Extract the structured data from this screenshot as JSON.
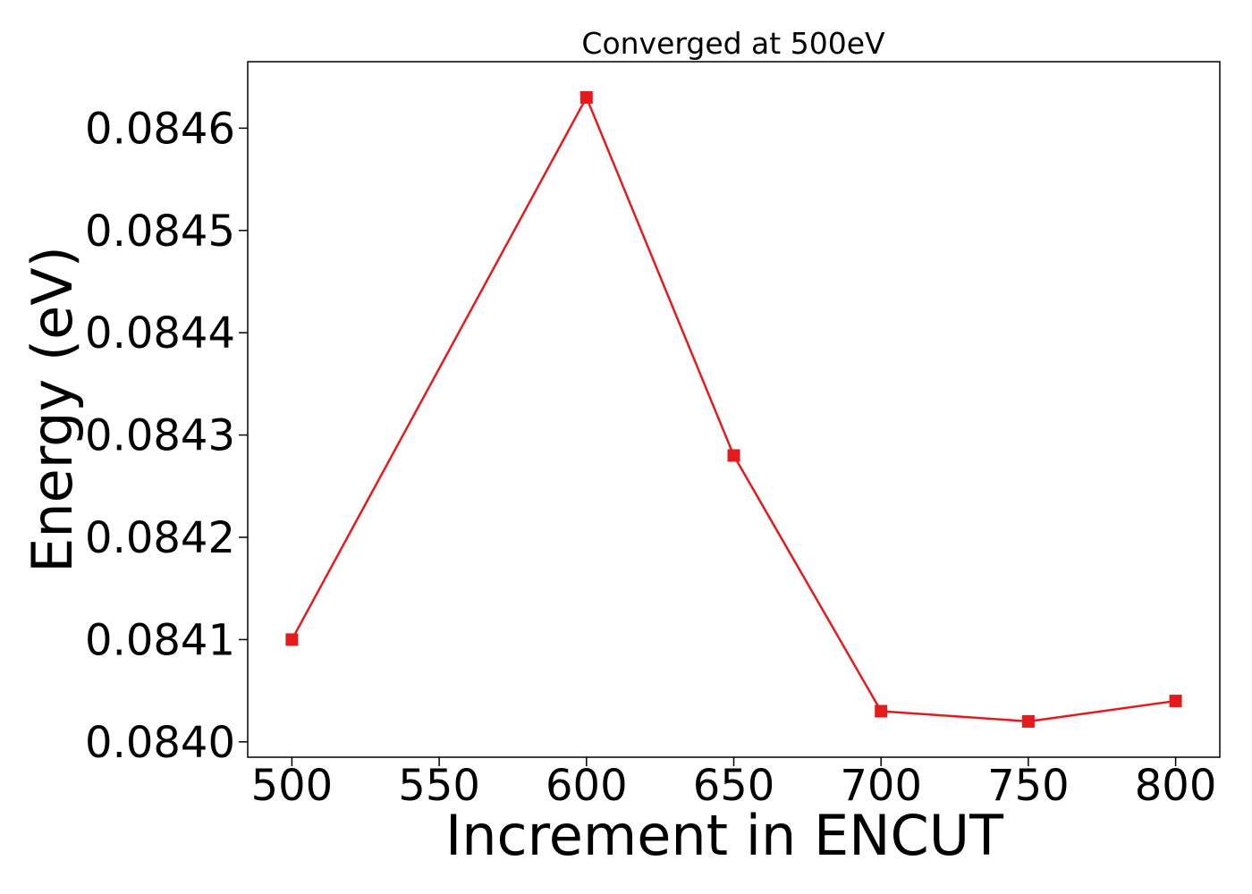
{
  "chart_data": {
    "type": "line",
    "title": "Converged at 500eV",
    "xlabel": "Increment in ENCUT",
    "ylabel": "Energy (eV)",
    "x": [
      500,
      600,
      650,
      700,
      750,
      800
    ],
    "series": [
      {
        "values": [
          0.0841,
          0.08463,
          0.08428,
          0.08403,
          0.08402,
          0.08404
        ],
        "color": "#e41a1c",
        "marker": "square"
      }
    ],
    "xlim": [
      485,
      815
    ],
    "ylim": [
      0.083985,
      0.084665
    ],
    "xticks": [
      500,
      550,
      600,
      650,
      700,
      750,
      800
    ],
    "xtick_labels": [
      "500",
      "550",
      "600",
      "650",
      "700",
      "750",
      "800"
    ],
    "yticks": [
      0.084,
      0.0841,
      0.0842,
      0.0843,
      0.0844,
      0.0845,
      0.0846
    ],
    "ytick_labels": [
      "0.0840",
      "0.0841",
      "0.0842",
      "0.0843",
      "0.0844",
      "0.0845",
      "0.0846"
    ],
    "grid": false,
    "legend": "none"
  }
}
